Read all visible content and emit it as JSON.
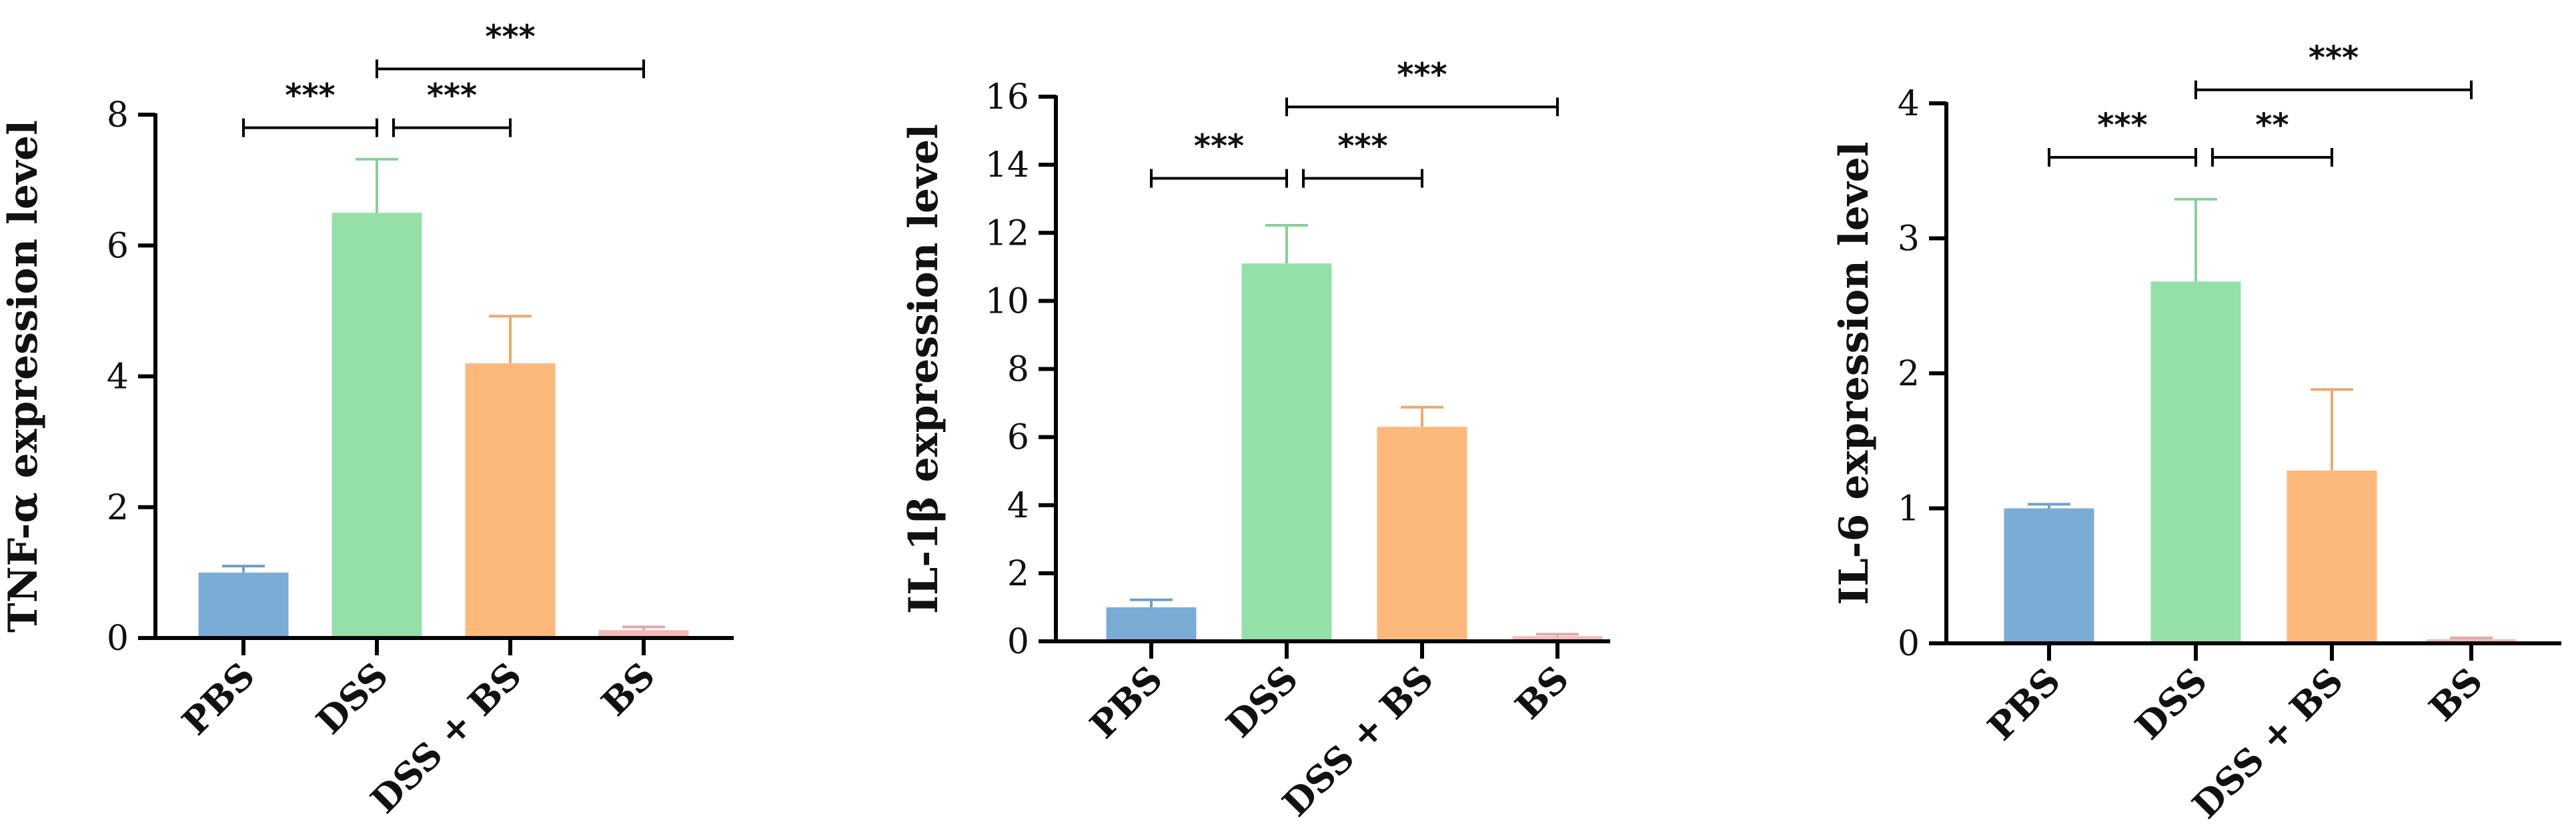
{
  "chart_data": [
    {
      "type": "bar",
      "title": "",
      "xlabel": "",
      "ylabel": "TNF-α expression level",
      "categories": [
        "PBS",
        "DSS",
        "DSS + BS",
        "BS"
      ],
      "values": [
        1.0,
        6.5,
        4.2,
        0.12
      ],
      "error": [
        0.1,
        0.82,
        0.72,
        0.05
      ],
      "colors": [
        "#7bacd6",
        "#95e0a8",
        "#fdb97b",
        "#f4b8b8"
      ],
      "ylim": [
        0,
        8
      ],
      "yticks": [
        "0",
        "2",
        "4",
        "6",
        "8"
      ],
      "grid": false,
      "significance": [
        {
          "from": 0,
          "to": 1,
          "label": "***",
          "y": 7.8
        },
        {
          "from": 1,
          "to": 2,
          "label": "***",
          "y": 7.8
        },
        {
          "from": 1,
          "to": 3,
          "label": "***",
          "y": 8.7
        }
      ]
    },
    {
      "type": "bar",
      "title": "",
      "xlabel": "",
      "ylabel": "IL-1β expression level",
      "categories": [
        "PBS",
        "DSS",
        "DSS + BS",
        "BS"
      ],
      "values": [
        1.0,
        11.1,
        6.3,
        0.15
      ],
      "error": [
        0.22,
        1.12,
        0.58,
        0.06
      ],
      "colors": [
        "#7bacd6",
        "#95e0a8",
        "#fdb97b",
        "#f4b8b8"
      ],
      "ylim": [
        0,
        16
      ],
      "yticks": [
        "0",
        "2",
        "4",
        "6",
        "8",
        "10",
        "12",
        "14",
        "16"
      ],
      "grid": false,
      "significance": [
        {
          "from": 0,
          "to": 1,
          "label": "***",
          "y": 13.6
        },
        {
          "from": 1,
          "to": 2,
          "label": "***",
          "y": 13.6
        },
        {
          "from": 1,
          "to": 3,
          "label": "***",
          "y": 15.7
        }
      ]
    },
    {
      "type": "bar",
      "title": "",
      "xlabel": "",
      "ylabel": "IL-6 expression level",
      "categories": [
        "PBS",
        "DSS",
        "DSS + BS",
        "BS"
      ],
      "values": [
        1.0,
        2.68,
        1.28,
        0.03
      ],
      "error": [
        0.03,
        0.61,
        0.6,
        0.01
      ],
      "colors": [
        "#7bacd6",
        "#95e0a8",
        "#fdb97b",
        "#f4b8b8"
      ],
      "ylim": [
        0,
        4
      ],
      "yticks": [
        "0",
        "1",
        "2",
        "3",
        "4"
      ],
      "grid": false,
      "significance": [
        {
          "from": 0,
          "to": 1,
          "label": "***",
          "y": 3.6
        },
        {
          "from": 1,
          "to": 2,
          "label": "**",
          "y": 3.6
        },
        {
          "from": 1,
          "to": 3,
          "label": "***",
          "y": 4.1
        }
      ]
    }
  ]
}
